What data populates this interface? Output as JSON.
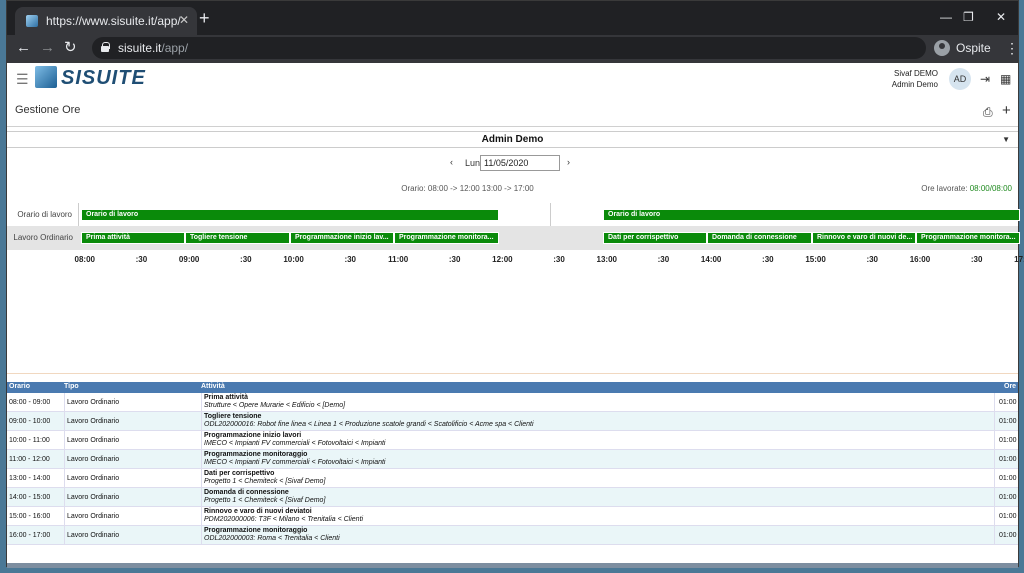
{
  "browser": {
    "tab_title": "https://www.sisuite.it/app/",
    "url_host": "sisuite.it",
    "url_path": "/app/",
    "profile_name": "Ospite"
  },
  "app": {
    "logo_text": "SISUITE",
    "company": "Sivaf DEMO",
    "user": "Admin Demo",
    "avatar_initials": "AD",
    "page_title": "Gestione Ore"
  },
  "selector": {
    "user": "Admin Demo"
  },
  "datenav": {
    "day": "Lun",
    "date": "11/05/2020"
  },
  "schedule": {
    "orario": "Orario: 08:00 -> 12:00 13:00 -> 17:00",
    "ore_lavorate_label": "Ore lavorate:",
    "ore_lavorate_value": "08:00/08:00"
  },
  "gantt": {
    "row_labels": [
      "Orario di lavoro",
      "Lavoro Ordinario"
    ],
    "orario_bars": [
      "Orario di lavoro",
      "Orario di lavoro"
    ],
    "work_bars": [
      "Prima attività",
      "Togliere tensione",
      "Programmazione inizio lav...",
      "Programmazione monitora...",
      "Dati per corrispettivo",
      "Domanda di connessione",
      "Rinnovo e varo di nuovi de...",
      "Programmazione monitora..."
    ],
    "ticks": [
      "08:00",
      ":30",
      "09:00",
      ":30",
      "10:00",
      ":30",
      "11:00",
      ":30",
      "12:00",
      ":30",
      "13:00",
      ":30",
      "14:00",
      ":30",
      "15:00",
      ":30",
      "16:00",
      ":30",
      "17:00"
    ]
  },
  "table": {
    "headers": {
      "orario": "Orario",
      "tipo": "Tipo",
      "attivita": "Attività",
      "ore": "Ore"
    },
    "rows": [
      {
        "orario": "08:00 - 09:00",
        "tipo": "Lavoro Ordinario",
        "title": "Prima attività",
        "path": "Strutture < Opere Murarie < Edificio < [Demo]",
        "ore": "01:00"
      },
      {
        "orario": "09:00 - 10:00",
        "tipo": "Lavoro Ordinario",
        "title": "Togliere tensione",
        "path": "ODL202000016: Robot fine linea < Linea 1 < Produzione scatole grandi < Scatolificio < Acme spa < Clienti",
        "ore": "01:00"
      },
      {
        "orario": "10:00 - 11:00",
        "tipo": "Lavoro Ordinario",
        "title": "Programmazione inizio lavori",
        "path": "IMECO < Impianti FV commerciali < Fotovoltaici < Impianti",
        "ore": "01:00"
      },
      {
        "orario": "11:00 - 12:00",
        "tipo": "Lavoro Ordinario",
        "title": "Programmazione monitoraggio",
        "path": "IMECO < Impianti FV commerciali < Fotovoltaici < Impianti",
        "ore": "01:00"
      },
      {
        "orario": "13:00 - 14:00",
        "tipo": "Lavoro Ordinario",
        "title": "Dati per corrispettivo",
        "path": "Progetto 1 < Chemiteck < [Sivaf Demo]",
        "ore": "01:00"
      },
      {
        "orario": "14:00 - 15:00",
        "tipo": "Lavoro Ordinario",
        "title": "Domanda di connessione",
        "path": "Progetto 1 < Chemiteck < [Sivaf Demo]",
        "ore": "01:00"
      },
      {
        "orario": "15:00 - 16:00",
        "tipo": "Lavoro Ordinario",
        "title": "Rinnovo e varo di nuovi deviatoi",
        "path": "PDM202000006: T3F < Milano < Trenitalia < Clienti",
        "ore": "01:00"
      },
      {
        "orario": "16:00 - 17:00",
        "tipo": "Lavoro Ordinario",
        "title": "Programmazione monitoraggio",
        "path": "ODL202000003: Roma < Trenitalia < Clienti",
        "ore": "01:00"
      }
    ]
  }
}
